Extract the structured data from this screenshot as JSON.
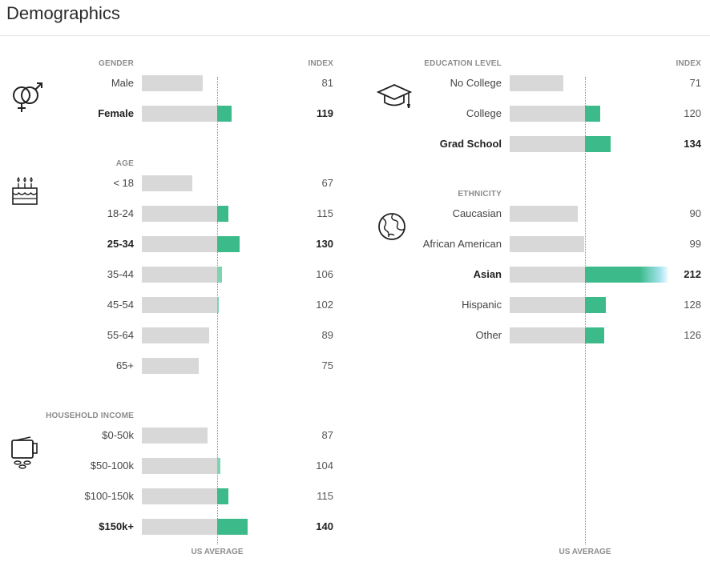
{
  "page": {
    "title": "Demographics"
  },
  "colors": {
    "bar_base": "#d8d8d8",
    "bar_above": "#3dba8a",
    "bar_above_light": "#7ed3b0",
    "bar_highlight_tip": "#a8e4f0"
  },
  "index_label": "INDEX",
  "avg_label": "US AVERAGE",
  "chart_data": [
    {
      "type": "bar",
      "title": "GENDER",
      "icon": "gender-icon",
      "categories": [
        "Male",
        "Female"
      ],
      "values": [
        81,
        119
      ],
      "highlight": [
        false,
        true
      ],
      "baseline": 100
    },
    {
      "type": "bar",
      "title": "AGE",
      "icon": "birthday-cake-icon",
      "categories": [
        "< 18",
        "18-24",
        "25-34",
        "35-44",
        "45-54",
        "55-64",
        "65+"
      ],
      "values": [
        67,
        115,
        130,
        106,
        102,
        89,
        75
      ],
      "highlight": [
        false,
        false,
        true,
        false,
        false,
        false,
        false
      ],
      "baseline": 100
    },
    {
      "type": "bar",
      "title": "HOUSEHOLD INCOME",
      "icon": "wallet-icon",
      "categories": [
        "$0-50k",
        "$50-100k",
        "$100-150k",
        "$150k+"
      ],
      "values": [
        87,
        104,
        115,
        140
      ],
      "highlight": [
        false,
        false,
        false,
        true
      ],
      "baseline": 100
    },
    {
      "type": "bar",
      "title": "EDUCATION LEVEL",
      "icon": "graduation-cap-icon",
      "categories": [
        "No College",
        "College",
        "Grad School"
      ],
      "values": [
        71,
        120,
        134
      ],
      "highlight": [
        false,
        false,
        true
      ],
      "baseline": 100
    },
    {
      "type": "bar",
      "title": "ETHNICITY",
      "icon": "globe-icon",
      "categories": [
        "Caucasian",
        "African American",
        "Asian",
        "Hispanic",
        "Other"
      ],
      "values": [
        90,
        99,
        212,
        128,
        126
      ],
      "highlight": [
        false,
        false,
        true,
        false,
        false
      ],
      "baseline": 100
    }
  ]
}
